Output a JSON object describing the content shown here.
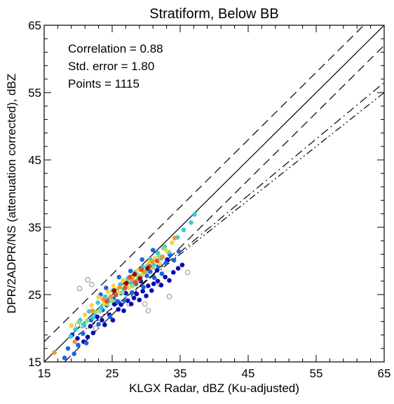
{
  "chart_data": {
    "type": "scatter",
    "title": "Stratiform, Below BB",
    "xlabel": "KLGX Radar, dBZ (Ku-adjusted)",
    "ylabel": "DPR/2ADPR/NS (attenuation corrected), dBZ",
    "xlim": [
      15,
      65
    ],
    "ylim": [
      15,
      65
    ],
    "xticks": [
      15,
      25,
      35,
      45,
      55,
      65
    ],
    "yticks": [
      15,
      25,
      35,
      45,
      55,
      65
    ],
    "annotations": [
      "Correlation = 0.88",
      "Std. error = 1.80",
      "Points = 1115"
    ],
    "grid": false,
    "lines": [
      {
        "style": "solid",
        "points": [
          [
            15,
            15
          ],
          [
            65,
            65
          ]
        ]
      },
      {
        "style": "dashed",
        "points": [
          [
            15,
            18
          ],
          [
            62,
            65
          ]
        ]
      },
      {
        "style": "dashed",
        "points": [
          [
            18,
            15
          ],
          [
            65,
            62
          ]
        ]
      },
      {
        "style": "dash-dot",
        "points": [
          [
            21.5,
            20
          ],
          [
            65,
            56.5
          ]
        ]
      },
      {
        "style": "dash-dot-dot",
        "points": [
          [
            20,
            19
          ],
          [
            65,
            55
          ]
        ]
      }
    ],
    "series": [
      {
        "color": "#ffffff",
        "points": [
          [
            19.9,
            20.5
          ],
          [
            20.2,
            25.9
          ],
          [
            20.5,
            20.4
          ],
          [
            20.8,
            20.4
          ],
          [
            21.4,
            27.2
          ],
          [
            22.0,
            26.5
          ],
          [
            22.6,
            20.0
          ],
          [
            27.5,
            23.6
          ],
          [
            29.8,
            23.6
          ],
          [
            30.3,
            22.6
          ],
          [
            32.0,
            26.5
          ],
          [
            33.4,
            24.7
          ],
          [
            36.1,
            28.3
          ]
        ]
      },
      {
        "color": "#0a0ab4",
        "points": [
          [
            19.1,
            19.0
          ],
          [
            19.9,
            18.5
          ],
          [
            20.8,
            18.0
          ],
          [
            21.4,
            18.7
          ],
          [
            21.8,
            20.3
          ],
          [
            22.2,
            19.3
          ],
          [
            22.8,
            21.7
          ],
          [
            23.5,
            21.2
          ],
          [
            23.9,
            20.5
          ],
          [
            24.6,
            22.0
          ],
          [
            25.1,
            21.2
          ],
          [
            25.9,
            22.8
          ],
          [
            26.3,
            23.5
          ],
          [
            26.7,
            22.6
          ],
          [
            27.3,
            24.1
          ],
          [
            27.8,
            23.6
          ],
          [
            28.2,
            24.5
          ],
          [
            28.6,
            25.1
          ],
          [
            29.0,
            24.2
          ],
          [
            29.5,
            25.5
          ],
          [
            30.0,
            24.8
          ],
          [
            30.3,
            26.3
          ],
          [
            30.8,
            25.6
          ],
          [
            31.1,
            26.6
          ],
          [
            31.7,
            27.0
          ],
          [
            32.2,
            26.4
          ],
          [
            32.8,
            27.6
          ],
          [
            33.4,
            27.1
          ],
          [
            34.0,
            28.3
          ],
          [
            34.7,
            28.9
          ],
          [
            35.3,
            29.4
          ],
          [
            33.1,
            30.2
          ],
          [
            31.6,
            28.6
          ],
          [
            29.2,
            27.0
          ],
          [
            27.0,
            25.2
          ],
          [
            25.3,
            23.6
          ]
        ]
      },
      {
        "color": "#1e64dc",
        "points": [
          [
            18.0,
            15.6
          ],
          [
            18.5,
            17.0
          ],
          [
            19.4,
            16.2
          ],
          [
            20.0,
            17.5
          ],
          [
            20.7,
            19.2
          ],
          [
            21.2,
            17.8
          ],
          [
            21.9,
            21.2
          ],
          [
            22.4,
            22.3
          ],
          [
            23.0,
            20.6
          ],
          [
            23.6,
            22.7
          ],
          [
            24.2,
            23.4
          ],
          [
            24.7,
            21.7
          ],
          [
            25.2,
            24.4
          ],
          [
            25.8,
            24.0
          ],
          [
            26.3,
            25.2
          ],
          [
            26.8,
            24.1
          ],
          [
            27.4,
            26.0
          ],
          [
            27.9,
            25.3
          ],
          [
            28.5,
            26.6
          ],
          [
            29.0,
            27.2
          ],
          [
            29.6,
            26.1
          ],
          [
            30.1,
            27.8
          ],
          [
            30.6,
            28.4
          ],
          [
            31.2,
            27.5
          ],
          [
            31.8,
            29.2
          ],
          [
            32.3,
            28.1
          ],
          [
            32.9,
            29.7
          ],
          [
            33.5,
            30.9
          ],
          [
            34.1,
            30.1
          ],
          [
            34.8,
            31.4
          ],
          [
            23.3,
            25.0
          ],
          [
            24.1,
            26.0
          ],
          [
            26.0,
            27.6
          ],
          [
            27.7,
            28.5
          ],
          [
            29.4,
            30.2
          ],
          [
            31.0,
            31.6
          ]
        ]
      },
      {
        "color": "#33ccdd",
        "points": [
          [
            18.9,
            18.8
          ],
          [
            19.6,
            19.8
          ],
          [
            20.3,
            21.2
          ],
          [
            20.9,
            20.5
          ],
          [
            21.6,
            22.5
          ],
          [
            22.2,
            21.6
          ],
          [
            22.9,
            23.8
          ],
          [
            23.4,
            23.1
          ],
          [
            24.0,
            24.7
          ],
          [
            24.5,
            24.0
          ],
          [
            25.1,
            25.6
          ],
          [
            25.6,
            24.9
          ],
          [
            26.2,
            26.5
          ],
          [
            26.7,
            25.8
          ],
          [
            27.3,
            27.4
          ],
          [
            27.8,
            26.7
          ],
          [
            28.4,
            28.3
          ],
          [
            28.9,
            27.5
          ],
          [
            29.5,
            29.1
          ],
          [
            30.0,
            28.5
          ],
          [
            30.6,
            30.2
          ],
          [
            31.1,
            29.4
          ],
          [
            31.7,
            31.2
          ],
          [
            32.2,
            30.4
          ],
          [
            32.7,
            32.1
          ],
          [
            33.3,
            31.3
          ],
          [
            34.6,
            33.5
          ],
          [
            35.5,
            34.6
          ],
          [
            36.6,
            35.7
          ],
          [
            37.1,
            36.9
          ]
        ]
      },
      {
        "color": "#88e088",
        "points": [
          [
            20.1,
            20.9
          ],
          [
            21.3,
            21.1
          ],
          [
            22.5,
            22.4
          ],
          [
            23.2,
            22.5
          ],
          [
            24.3,
            23.6
          ],
          [
            25.0,
            24.1
          ],
          [
            25.7,
            25.7
          ],
          [
            26.5,
            25.3
          ],
          [
            27.2,
            26.9
          ],
          [
            28.0,
            26.3
          ],
          [
            28.7,
            27.9
          ],
          [
            29.3,
            27.8
          ],
          [
            30.2,
            29.3
          ],
          [
            31.0,
            29.0
          ],
          [
            31.9,
            30.7
          ],
          [
            32.5,
            31.9
          ]
        ]
      },
      {
        "color": "#ffd23c",
        "points": [
          [
            17.4,
            14.8
          ],
          [
            19.0,
            20.4
          ],
          [
            21.0,
            22.0
          ],
          [
            22.0,
            23.4
          ],
          [
            23.0,
            24.6
          ],
          [
            23.8,
            23.7
          ],
          [
            24.4,
            25.4
          ],
          [
            25.2,
            26.3
          ],
          [
            25.9,
            25.3
          ],
          [
            26.6,
            27.1
          ],
          [
            27.4,
            26.0
          ],
          [
            28.1,
            27.6
          ],
          [
            28.8,
            28.6
          ],
          [
            29.6,
            28.1
          ],
          [
            30.4,
            29.8
          ],
          [
            31.3,
            30.4
          ],
          [
            32.0,
            29.6
          ],
          [
            33.0,
            31.5
          ],
          [
            33.8,
            32.7
          ]
        ]
      },
      {
        "color": "#f09632",
        "points": [
          [
            16.5,
            16.4
          ],
          [
            19.5,
            18.0
          ],
          [
            22.1,
            22.6
          ],
          [
            23.7,
            24.3
          ],
          [
            24.8,
            24.7
          ],
          [
            26.1,
            26.1
          ],
          [
            27.0,
            26.4
          ],
          [
            27.9,
            27.2
          ],
          [
            28.6,
            27.0
          ],
          [
            29.7,
            28.4
          ],
          [
            30.9,
            29.9
          ],
          [
            32.4,
            30.6
          ],
          [
            34.2,
            33.4
          ]
        ]
      },
      {
        "color": "#e0502a",
        "points": [
          [
            24.2,
            24.0
          ],
          [
            25.5,
            25.0
          ],
          [
            26.9,
            26.0
          ],
          [
            27.6,
            27.6
          ],
          [
            28.4,
            26.8
          ],
          [
            29.3,
            28.7
          ],
          [
            30.5,
            29.2
          ],
          [
            31.6,
            30.0
          ]
        ]
      },
      {
        "color": "#a00000",
        "points": [
          [
            25.3,
            25.6
          ],
          [
            27.1,
            26.7
          ],
          [
            28.3,
            28.0
          ],
          [
            29.1,
            27.4
          ],
          [
            30.2,
            28.9
          ]
        ]
      }
    ]
  }
}
